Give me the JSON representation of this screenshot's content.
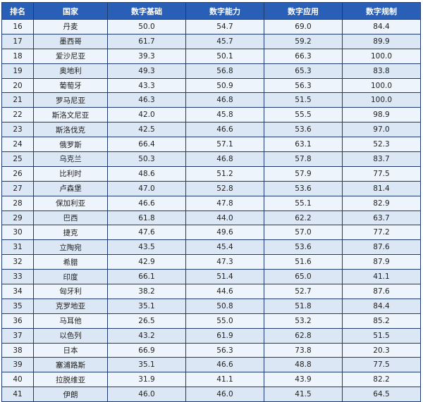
{
  "table": {
    "headers": [
      "排名",
      "国家",
      "数字基础",
      "数字能力",
      "数字应用",
      "数字规制"
    ],
    "rows": [
      [
        "16",
        "丹麦",
        "50.0",
        "54.7",
        "69.0",
        "84.4"
      ],
      [
        "17",
        "墨西哥",
        "61.7",
        "45.7",
        "59.2",
        "89.9"
      ],
      [
        "18",
        "爱沙尼亚",
        "39.3",
        "50.1",
        "66.3",
        "100.0"
      ],
      [
        "19",
        "奥地利",
        "49.3",
        "56.8",
        "65.3",
        "83.8"
      ],
      [
        "20",
        "葡萄牙",
        "43.3",
        "50.9",
        "56.3",
        "100.0"
      ],
      [
        "21",
        "罗马尼亚",
        "46.3",
        "46.8",
        "51.5",
        "100.0"
      ],
      [
        "22",
        "斯洛文尼亚",
        "42.0",
        "45.8",
        "55.5",
        "98.9"
      ],
      [
        "23",
        "斯洛伐克",
        "42.5",
        "46.6",
        "53.6",
        "97.0"
      ],
      [
        "24",
        "俄罗斯",
        "66.4",
        "57.1",
        "63.1",
        "52.3"
      ],
      [
        "25",
        "乌克兰",
        "50.3",
        "46.8",
        "57.8",
        "83.7"
      ],
      [
        "26",
        "比利时",
        "48.6",
        "51.2",
        "57.9",
        "77.5"
      ],
      [
        "27",
        "卢森堡",
        "47.0",
        "52.8",
        "53.6",
        "81.4"
      ],
      [
        "28",
        "保加利亚",
        "46.6",
        "47.8",
        "55.1",
        "82.9"
      ],
      [
        "29",
        "巴西",
        "61.8",
        "44.0",
        "62.2",
        "63.7"
      ],
      [
        "30",
        "捷克",
        "47.6",
        "49.6",
        "57.0",
        "77.2"
      ],
      [
        "31",
        "立陶宛",
        "43.5",
        "45.4",
        "53.6",
        "87.6"
      ],
      [
        "32",
        "希腊",
        "42.9",
        "47.3",
        "51.6",
        "87.9"
      ],
      [
        "33",
        "印度",
        "66.1",
        "51.4",
        "65.0",
        "41.1"
      ],
      [
        "34",
        "匈牙利",
        "38.2",
        "44.6",
        "52.7",
        "87.6"
      ],
      [
        "35",
        "克罗地亚",
        "35.1",
        "50.8",
        "51.8",
        "84.4"
      ],
      [
        "36",
        "马耳他",
        "26.5",
        "55.0",
        "53.2",
        "85.2"
      ],
      [
        "37",
        "以色列",
        "43.2",
        "61.9",
        "62.8",
        "51.5"
      ],
      [
        "38",
        "日本",
        "66.9",
        "56.3",
        "73.8",
        "20.3"
      ],
      [
        "39",
        "塞浦路斯",
        "35.1",
        "46.6",
        "48.8",
        "77.5"
      ],
      [
        "40",
        "拉脱维亚",
        "31.9",
        "41.1",
        "43.9",
        "82.2"
      ],
      [
        "41",
        "伊朗",
        "46.0",
        "46.0",
        "41.5",
        "64.5"
      ]
    ]
  },
  "colors": {
    "header_bg": "#2a5fb7",
    "header_text": "#ffffff",
    "row_light": "#eef4fb",
    "row_dark": "#dbe7f5",
    "border": "#1e3a6e"
  }
}
